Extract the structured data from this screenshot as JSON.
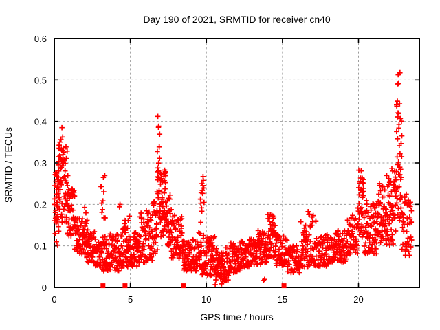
{
  "window": {
    "background": "#ffffff"
  },
  "chart_data": {
    "type": "scatter",
    "title": "Day 190 of 2021, SRMTID for receiver cn40",
    "xlabel": "GPS time / hours",
    "ylabel": "SRMTID / TECUs",
    "xlim": [
      0,
      24
    ],
    "ylim": [
      0,
      0.6
    ],
    "xticks": {
      "values": [
        0,
        5,
        10,
        15,
        20
      ],
      "labels": [
        "0",
        "5",
        "10",
        "15",
        "20"
      ]
    },
    "yticks": {
      "values": [
        0,
        0.1,
        0.2,
        0.3,
        0.4,
        0.5,
        0.6
      ],
      "labels": [
        "0",
        "0.1",
        "0.2",
        "0.3",
        "0.4",
        "0.5",
        "0.6"
      ]
    },
    "grid": true,
    "grid_color": "#9b9b9b",
    "marker": {
      "shape": "plus",
      "color": "#ff0000",
      "size": 7.6,
      "stroke_width": 1.7
    },
    "seed": 190,
    "band_format": [
      "hour_start",
      "hour_end",
      "value_min",
      "value_max",
      "count",
      "bottom_bias"
    ],
    "bands": [
      [
        0.0,
        0.3,
        0.1,
        0.28,
        28,
        1.1
      ],
      [
        0.1,
        0.9,
        0.15,
        0.345,
        75,
        0.95
      ],
      [
        0.25,
        0.6,
        0.3,
        0.395,
        10,
        0.9
      ],
      [
        0.85,
        1.35,
        0.12,
        0.24,
        48,
        1.2
      ],
      [
        1.35,
        2.05,
        0.08,
        0.17,
        55,
        1.25
      ],
      [
        1.95,
        2.2,
        0.13,
        0.2,
        10,
        1.0
      ],
      [
        2.05,
        2.65,
        0.06,
        0.15,
        48,
        1.3
      ],
      [
        2.65,
        3.15,
        0.05,
        0.12,
        40,
        1.3
      ],
      [
        3.05,
        3.35,
        0.16,
        0.27,
        11,
        0.9
      ],
      [
        3.15,
        4.45,
        0.04,
        0.13,
        100,
        1.45
      ],
      [
        4.25,
        4.35,
        0.19,
        0.215,
        2,
        1.0
      ],
      [
        4.45,
        4.95,
        0.05,
        0.175,
        48,
        1.3
      ],
      [
        4.95,
        5.6,
        0.05,
        0.135,
        52,
        1.3
      ],
      [
        5.6,
        6.45,
        0.06,
        0.19,
        68,
        1.4
      ],
      [
        6.45,
        6.78,
        0.08,
        0.22,
        30,
        1.2
      ],
      [
        6.75,
        6.95,
        0.15,
        0.415,
        26,
        0.8
      ],
      [
        6.95,
        7.35,
        0.12,
        0.285,
        48,
        1.1
      ],
      [
        7.35,
        7.7,
        0.1,
        0.225,
        36,
        1.2
      ],
      [
        7.7,
        8.45,
        0.07,
        0.175,
        62,
        1.3
      ],
      [
        8.45,
        9.35,
        0.04,
        0.115,
        68,
        1.4
      ],
      [
        9.35,
        9.65,
        0.05,
        0.135,
        20,
        1.2
      ],
      [
        9.6,
        9.85,
        0.15,
        0.27,
        14,
        0.9
      ],
      [
        9.65,
        10.6,
        0.03,
        0.125,
        72,
        1.5
      ],
      [
        9.9,
        11.5,
        0.005,
        0.032,
        8,
        1.0
      ],
      [
        10.6,
        11.45,
        0.015,
        0.098,
        70,
        1.3
      ],
      [
        11.45,
        12.25,
        0.035,
        0.108,
        65,
        1.3
      ],
      [
        12.25,
        13.25,
        0.05,
        0.118,
        75,
        1.3
      ],
      [
        13.25,
        14.0,
        0.055,
        0.138,
        60,
        1.3
      ],
      [
        13.75,
        13.85,
        0.01,
        0.025,
        2,
        1.0
      ],
      [
        14.0,
        14.55,
        0.07,
        0.178,
        52,
        1.25
      ],
      [
        14.55,
        15.35,
        0.05,
        0.128,
        55,
        1.3
      ],
      [
        15.35,
        16.2,
        0.035,
        0.1,
        62,
        1.3
      ],
      [
        16.2,
        17.25,
        0.05,
        0.185,
        82,
        1.5
      ],
      [
        17.25,
        18.25,
        0.05,
        0.128,
        70,
        1.3
      ],
      [
        18.25,
        19.25,
        0.06,
        0.138,
        72,
        1.3
      ],
      [
        19.25,
        19.95,
        0.08,
        0.178,
        56,
        1.25
      ],
      [
        19.95,
        20.35,
        0.12,
        0.29,
        42,
        1.0
      ],
      [
        20.35,
        21.2,
        0.08,
        0.21,
        68,
        1.25
      ],
      [
        21.2,
        21.85,
        0.1,
        0.255,
        58,
        1.1
      ],
      [
        21.85,
        22.45,
        0.1,
        0.29,
        52,
        1.1
      ],
      [
        22.45,
        22.85,
        0.15,
        0.46,
        46,
        0.85
      ],
      [
        22.55,
        22.75,
        0.48,
        0.53,
        5,
        1.0
      ],
      [
        22.85,
        23.5,
        0.07,
        0.225,
        46,
        1.15
      ]
    ],
    "square_markers": {
      "color": "#ff0000",
      "size": 7,
      "points": [
        {
          "x": 3.2,
          "y": 0.004
        },
        {
          "x": 4.65,
          "y": 0.004
        },
        {
          "x": 8.5,
          "y": 0.004
        },
        {
          "x": 15.1,
          "y": 0.004
        }
      ]
    }
  }
}
